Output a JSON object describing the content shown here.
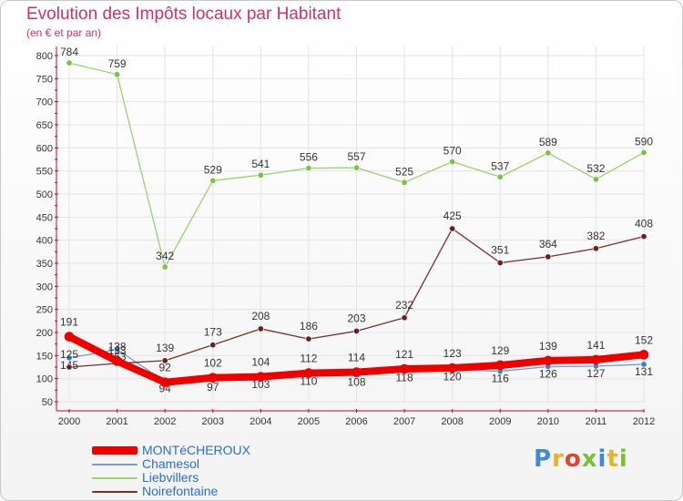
{
  "header": {
    "title": "Evolution des Impôts locaux par Habitant",
    "subtitle": "(en € et par an)"
  },
  "logo": {
    "letters": [
      "P",
      "r",
      "o",
      "x",
      "i",
      "t",
      "i"
    ],
    "colors": [
      "#3d8bd8",
      "#e9b32a",
      "#e0462c",
      "#7dbf3b",
      "#3d8bd8",
      "#e9b32a",
      "#7dbf3b"
    ]
  },
  "chart_data": {
    "type": "line",
    "title": "Evolution des Impôts locaux par Habitant",
    "ylabel": "(en € et par an)",
    "xlabel": "",
    "ylim": [
      50,
      800
    ],
    "yticks": [
      50,
      100,
      150,
      200,
      250,
      300,
      350,
      400,
      450,
      500,
      550,
      600,
      650,
      700,
      750,
      800
    ],
    "grid": true,
    "legend": "bottom-left",
    "x": [
      "2000",
      "2001",
      "2002",
      "2003",
      "2004",
      "2005",
      "2006",
      "2007",
      "2008",
      "2009",
      "2010",
      "2011",
      "2012"
    ],
    "series": [
      {
        "name": "Chamesol",
        "color": "#6f9ed0",
        "point_color": "#3a7fd0",
        "values": [
          145,
          163,
          94,
          97,
          103,
          110,
          108,
          118,
          120,
          116,
          126,
          127,
          131
        ]
      },
      {
        "name": "Liebvillers",
        "color": "#9ad26b",
        "point_color": "#7cc243",
        "values": [
          784,
          759,
          342,
          529,
          541,
          556,
          557,
          525,
          570,
          537,
          589,
          532,
          590
        ]
      },
      {
        "name": "Noirefontaine",
        "color": "#7b2e2e",
        "point_color": "#6a1f24",
        "values": [
          125,
          133,
          139,
          173,
          208,
          186,
          203,
          232,
          425,
          351,
          364,
          382,
          408
        ]
      },
      {
        "name": "MONTéCHEROUX",
        "color": "#ee0000",
        "point_color": "#ee0000",
        "values": [
          191,
          138,
          92,
          102,
          104,
          112,
          114,
          121,
          123,
          129,
          139,
          141,
          152
        ]
      }
    ],
    "legend_order": [
      "MONTéCHEROUX",
      "Chamesol",
      "Liebvillers",
      "Noirefontaine"
    ]
  }
}
